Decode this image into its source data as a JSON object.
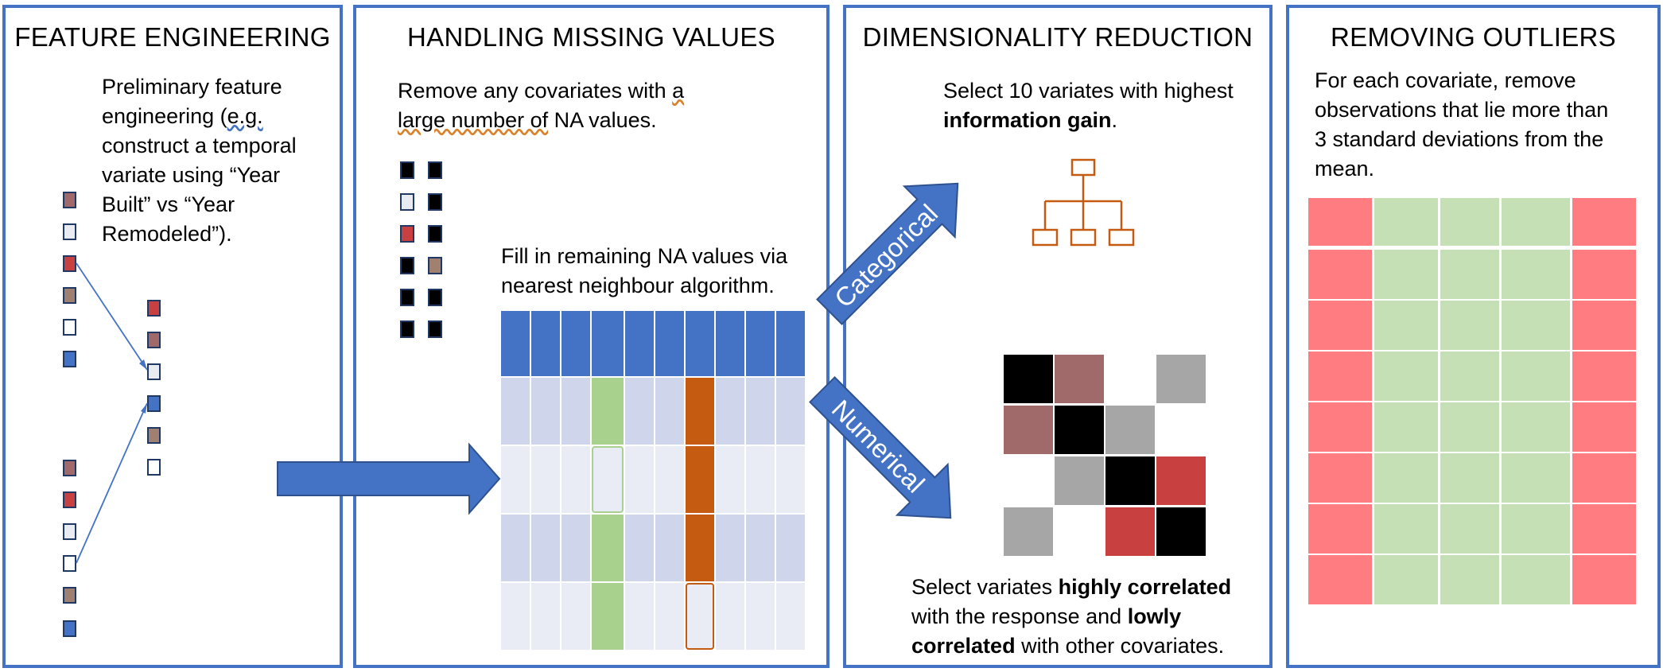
{
  "colors": {
    "panel_border": "#4472C4",
    "arrow_fill": "#4472C4",
    "outlier_red": "#FF7C80",
    "keep_green": "#C5E0B4",
    "na_orange": "#C55A11",
    "fill_green": "#A9D18E",
    "swatch_red": "#C94040",
    "swatch_brown": "#A06A6A",
    "swatch_taupe": "#A08070",
    "swatch_light": "#E8ECF2",
    "swatch_blue": "#4472C4",
    "corr_black": "#000000",
    "corr_gray": "#A6A6A6"
  },
  "panels": {
    "feature_engineering": {
      "title": "FEATURE ENGINEERING",
      "text_1": "Preliminary feature",
      "text_2a": "engineering (",
      "text_2b": "e.g.",
      "text_3": "construct a temporal",
      "text_4": "variate using “Year",
      "text_5": "Built” vs “Year",
      "text_6": "Remodeled”)."
    },
    "missing_values": {
      "title": "HANDLING MISSING VALUES",
      "remove_1a": "Remove any covariates with ",
      "remove_1b": "a",
      "remove_2a": "large number of",
      "remove_2b": " NA values.",
      "fill_1": "Fill in remaining NA values via",
      "fill_2": "nearest neighbour algorithm."
    },
    "dimensionality": {
      "title": "DIMENSIONALITY REDUCTION",
      "arrow_categorical": "Categorical",
      "arrow_numerical": "Numerical",
      "cat_text_1": "Select 10 variates with highest",
      "cat_text_2": "information gain",
      "cat_text_2_end": ".",
      "num_text_1a": "Select variates ",
      "num_text_1b": "highly correlated",
      "num_text_2a": "with the response and ",
      "num_text_2b": "lowly",
      "num_text_3a": "correlated",
      "num_text_3b": " with other covariates."
    },
    "outliers": {
      "title": "REMOVING OUTLIERS",
      "text_1": "For each covariate, remove",
      "text_2": "observations that lie more than",
      "text_3": "3 standard deviations from the",
      "text_4": "mean."
    }
  }
}
